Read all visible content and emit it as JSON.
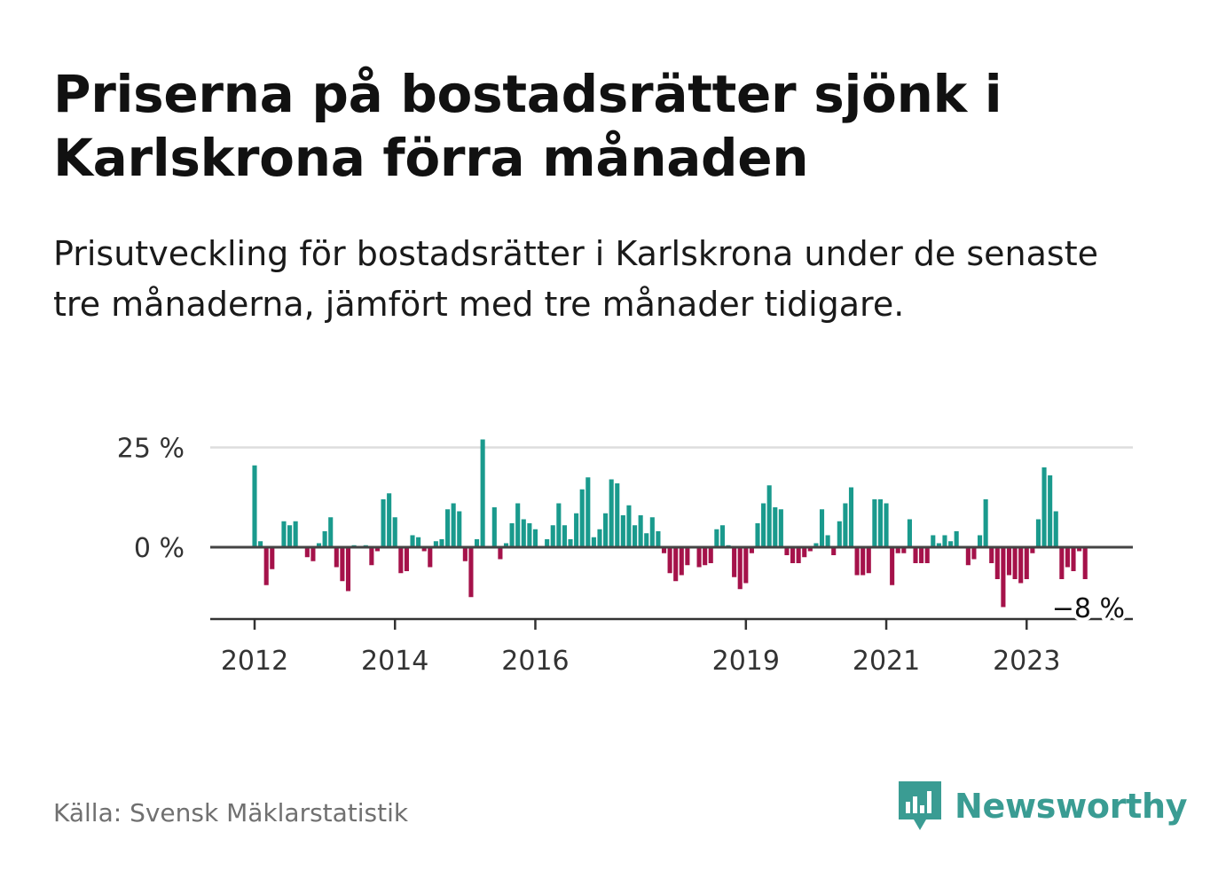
{
  "title": "Priserna på bostadsrätter sjönk i Karlskrona förra månaden",
  "subtitle": "Prisutveckling för bostadsrätter i Karlskrona under de senaste tre månaderna, jämfört med tre månader tidigare.",
  "source": "Källa: Svensk Mäklarstatistik",
  "brand": "Newsworthy",
  "colors": {
    "positive": "#1a9a8d",
    "negative": "#a5124a",
    "brand": "#3a9c93",
    "grid": "#dddddd",
    "zero_line": "#444444"
  },
  "chart_data": {
    "type": "bar",
    "title": "",
    "xlabel": "",
    "ylabel": "",
    "y_unit": "%",
    "ylim": [
      -18,
      27
    ],
    "y_ticks": [
      {
        "value": 25,
        "label": "25 %"
      },
      {
        "value": 0,
        "label": "0 %"
      }
    ],
    "x_ticks": [
      {
        "index": 0,
        "label": "2012"
      },
      {
        "index": 24,
        "label": "2014"
      },
      {
        "index": 48,
        "label": "2016"
      },
      {
        "index": 84,
        "label": "2019"
      },
      {
        "index": 108,
        "label": "2021"
      },
      {
        "index": 132,
        "label": "2023"
      }
    ],
    "grid": true,
    "end_label": "−8 %",
    "series": [
      {
        "start": "2012-01",
        "values": [
          20.5,
          1.5,
          -9.5,
          -5.5,
          0,
          6.5,
          5.5,
          6.5,
          0,
          -2.5,
          -3.5,
          1,
          4,
          7.5,
          -5,
          -8.5,
          -11,
          0.5,
          0,
          0.5,
          -4.5,
          -1,
          12,
          13.5,
          7.5,
          -6.5,
          -6,
          3,
          2.5,
          -1,
          -5,
          1.5,
          2,
          9.5,
          11,
          9,
          -3.5,
          -12.5,
          2,
          27,
          0,
          10,
          -3,
          1,
          6,
          11,
          7,
          6,
          4.5,
          0,
          2,
          5.5,
          11,
          5.5,
          2,
          8.5,
          14.5,
          17.5,
          2.5,
          4.5,
          8.5,
          17,
          16,
          8,
          10.5,
          5.5,
          8,
          3.5,
          7.5,
          4,
          -1.5,
          -6.5,
          -8.5,
          -7,
          -4.5,
          0,
          -5,
          -4.5,
          -4,
          4.5,
          5.5,
          0.5,
          -7.5,
          -10.5,
          -9,
          -1.5,
          6,
          11,
          15.5,
          10,
          9.5,
          -2,
          -4,
          -4,
          -2.5,
          -1,
          1,
          9.5,
          3,
          -2,
          6.5,
          11,
          15,
          -7,
          -7,
          -6.5,
          12,
          12,
          11,
          -9.5,
          -1.5,
          -1.5,
          7,
          -4,
          -4,
          -4,
          3,
          1,
          3,
          1.5,
          4,
          0,
          -4.5,
          -3,
          3,
          12,
          -4,
          -8,
          -15,
          -7,
          -8,
          -9,
          -8,
          -1.5,
          7,
          20,
          18,
          9,
          -8,
          -5,
          -6,
          -1,
          -8
        ]
      }
    ]
  }
}
